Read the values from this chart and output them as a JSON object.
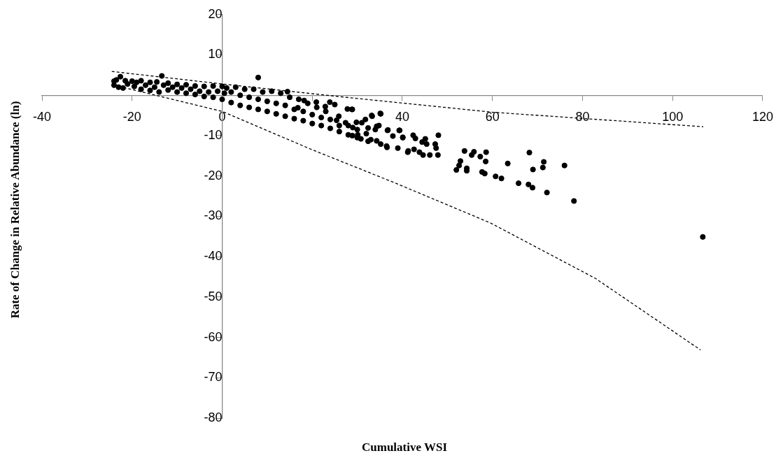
{
  "chart_data": {
    "type": "scatter",
    "xlabel": "Cumulative WSI",
    "ylabel": "Rate of Change in Relative Abundance (ln)",
    "xlim": [
      -40,
      120
    ],
    "ylim": [
      -80,
      20
    ],
    "xticks": [
      -40,
      -20,
      0,
      {
        "value": 20,
        "label": null
      },
      40,
      60,
      80,
      100,
      120
    ],
    "yticks": [
      -80,
      -70,
      -60,
      -50,
      -40,
      -30,
      -20,
      -10,
      {
        "value": 0,
        "label": null
      },
      10,
      20
    ],
    "grid": false,
    "legend": false,
    "series": [
      {
        "color": "#000000",
        "marker": "circle",
        "x": [
          -24,
          -24,
          -23.5,
          -23,
          -22,
          -21.5,
          -21,
          -20,
          -19.5,
          -19,
          -18,
          -18,
          -17,
          -16,
          -16,
          -15,
          -14.5,
          -14,
          -13,
          -12,
          -12,
          -11,
          -10,
          -10,
          -9,
          -8,
          -8,
          -7,
          -6,
          -6,
          -5,
          -4,
          -4,
          -3,
          -2,
          -2,
          -1,
          0,
          0,
          0.5,
          1,
          2,
          2,
          3,
          4,
          4,
          5,
          6,
          6,
          7,
          8,
          8,
          9,
          10,
          10,
          11,
          12,
          12,
          13,
          14,
          14,
          15,
          16,
          16,
          17,
          18,
          18,
          19,
          20,
          20,
          21,
          22,
          22,
          23,
          24,
          24,
          26,
          26,
          28,
          28,
          30,
          30,
          32,
          33,
          -22.6,
          -13.4,
          8.0,
          14.5,
          18.2,
          20.9,
          23.9,
          25.0,
          22.9,
          27.8,
          28.9,
          33.2,
          35.1,
          34.3,
          36.8,
          39.4,
          40.1,
          41.3,
          36.5,
          32.4,
          25.9,
          25.4,
          27.4,
          29.0,
          30.1,
          16.8,
          28.8,
          35.2,
          33.3,
          31.8,
          31.0,
          29.8,
          32.4,
          34.0,
          34.8,
          36.7,
          39.3,
          37.9,
          40.1,
          42.4,
          42.9,
          45.1,
          44.4,
          45.4,
          48.0,
          47.3,
          47.5,
          47.9,
          46.1,
          44.6,
          43.8,
          42.6,
          41.2,
          39.0,
          36.6,
          35.2,
          34.3,
          30.8,
          28.9,
          53.8,
          55.9,
          55.4,
          57.3,
          58.6,
          58.5,
          52.9,
          52.6,
          52.0,
          54.3,
          54.3,
          57.7,
          58.3,
          60.7,
          62.0,
          63.4,
          65.8,
          68.0,
          68.9,
          68.2,
          69.0,
          71.4,
          71.2,
          72.1,
          76.0,
          78.1,
          106.7
        ],
        "values": [
          3.5,
          2.5,
          3.8,
          2.0,
          1.8,
          3.6,
          2.8,
          3.5,
          2.2,
          3.2,
          1.5,
          3.6,
          2.5,
          1.2,
          3.2,
          2.0,
          3.3,
          0.8,
          2.5,
          1.3,
          3.0,
          2.0,
          0.8,
          2.7,
          1.8,
          0.5,
          2.6,
          1.5,
          0.2,
          2.3,
          1.0,
          -0.3,
          2.2,
          0.8,
          -0.5,
          2.3,
          1.0,
          -1.0,
          2.2,
          0.5,
          1.8,
          -1.8,
          0.8,
          2.0,
          -2.5,
          0.0,
          1.5,
          -3.0,
          -0.5,
          1.5,
          -3.5,
          -1.0,
          0.8,
          -4.0,
          -1.5,
          1.0,
          -4.6,
          -2.0,
          0.5,
          -5.2,
          -2.5,
          -0.5,
          -5.8,
          -3.5,
          -1.0,
          -6.3,
          -4.0,
          -2.0,
          -7.0,
          -4.8,
          -3.0,
          -7.5,
          -5.5,
          -4.0,
          -8.2,
          -6.0,
          -9.0,
          -7.5,
          -9.8,
          -7.5,
          -10.5,
          -8.5,
          -9.5,
          -11,
          4.6,
          4.8,
          4.4,
          0.9,
          -1.3,
          -1.7,
          -1.7,
          -2.3,
          -2.8,
          -3.4,
          -3.5,
          -5.0,
          -4.5,
          -7.7,
          -8.6,
          -8.7,
          -10.5,
          -13.8,
          -12.6,
          -11.4,
          -5.2,
          -6.2,
          -6.8,
          -8.0,
          -9.8,
          -3.1,
          -3.5,
          -4.6,
          -5.2,
          -6.0,
          -6.8,
          -6.7,
          -8.1,
          -8.5,
          -7.5,
          -8.7,
          -8.7,
          -10.1,
          -10.4,
          -9.9,
          -10.7,
          -10.8,
          -11.6,
          -12.1,
          -9.9,
          -12.1,
          -13.1,
          -14.8,
          -14.8,
          -14.8,
          -14.1,
          -13.4,
          -14.1,
          -13.1,
          -12.9,
          -12.1,
          -11.3,
          -10.8,
          -10.0,
          -13.8,
          -14.0,
          -14.8,
          -15.2,
          -14.1,
          -16.4,
          -16.3,
          -17.4,
          -18.5,
          -18.1,
          -18.7,
          -19.0,
          -19.4,
          -20.1,
          -20.6,
          -16.9,
          -21.8,
          -22.1,
          -22.9,
          -14.2,
          -18.4,
          -16.5,
          -17.9,
          -24.1,
          -17.4,
          -26.2,
          -35.1
        ]
      },
      {
        "type": "line",
        "color": "#000000",
        "marker": "none",
        "line_style": "dashed",
        "x": [
          -24.5,
          0,
          28.3,
          60,
          106.8
        ],
        "values": [
          5.9,
          2.8,
          -0.6,
          -4.2,
          -7.8
        ]
      },
      {
        "type": "line",
        "color": "#000000",
        "marker": "none",
        "line_style": "dashed",
        "x": [
          -24,
          0,
          20,
          37.9,
          59.5,
          82.9,
          106.2
        ],
        "values": [
          2.5,
          -4,
          -13.5,
          -21.5,
          -31.6,
          -45.4,
          -63.1
        ]
      }
    ]
  }
}
